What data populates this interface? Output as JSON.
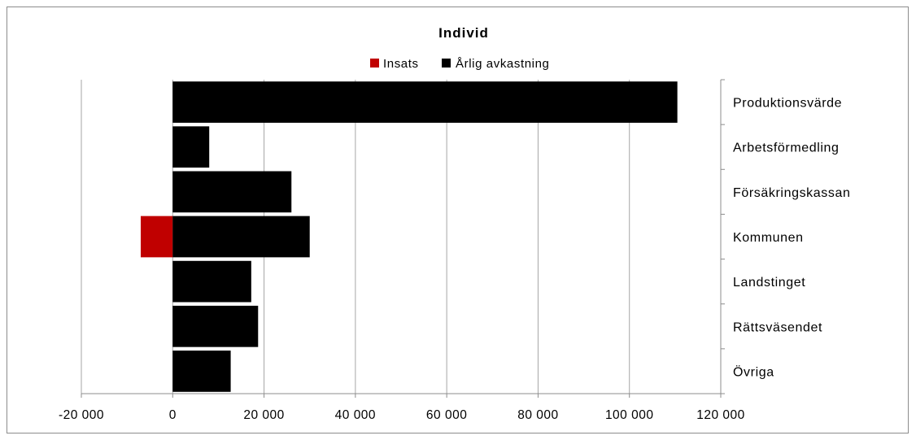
{
  "chart_data": {
    "type": "bar",
    "orientation": "horizontal",
    "stacked": true,
    "title": "Individ",
    "categories": [
      "Produktionsvärde",
      "Arbetsförmedling",
      "Försäkringskassan",
      "Kommunen",
      "Landstinget",
      "Rättsväsendet",
      "Övriga"
    ],
    "series": [
      {
        "name": "Insats",
        "color": "#c00000",
        "values": [
          0,
          0,
          0,
          -7000,
          0,
          0,
          0
        ]
      },
      {
        "name": "Årlig avkastning",
        "color": "#000000",
        "values": [
          110500,
          8000,
          26000,
          30000,
          17200,
          18700,
          12700
        ]
      }
    ],
    "x_ticks": [
      "-20 000",
      "0",
      "20 000",
      "40 000",
      "60 000",
      "80 000",
      "100 000",
      "120 000"
    ],
    "xlim": [
      -20000,
      120000
    ],
    "grid": "vertical",
    "legend_position": "top",
    "category_axis_position": "right"
  }
}
